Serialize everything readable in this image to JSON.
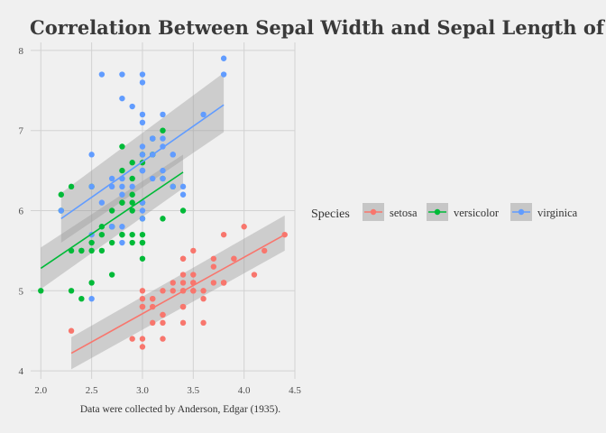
{
  "chart_data": {
    "type": "scatter",
    "title": "Correlation Between Sepal Width and Sepal Length of Iris Species",
    "caption": "Data were collected by Anderson, Edgar (1935).",
    "xlabel": "",
    "ylabel": "",
    "xlim": [
      1.9,
      4.5
    ],
    "ylim": [
      3.9,
      8.1
    ],
    "x_ticks": [
      "2.0",
      "2.5",
      "3.0",
      "3.5",
      "4.0",
      "4.5"
    ],
    "y_ticks": [
      "4",
      "5",
      "6",
      "7",
      "8"
    ],
    "grid": true,
    "legend": {
      "title": "Species",
      "placement": "right"
    },
    "series": [
      {
        "name": "setosa",
        "color": "#F8766D",
        "points": [
          [
            3.5,
            5.1
          ],
          [
            3.0,
            4.9
          ],
          [
            3.2,
            4.7
          ],
          [
            3.1,
            4.6
          ],
          [
            3.6,
            5.0
          ],
          [
            3.9,
            5.4
          ],
          [
            3.4,
            4.6
          ],
          [
            3.4,
            5.0
          ],
          [
            2.9,
            4.4
          ],
          [
            3.1,
            4.9
          ],
          [
            3.7,
            5.4
          ],
          [
            3.4,
            4.8
          ],
          [
            3.0,
            4.8
          ],
          [
            3.0,
            4.3
          ],
          [
            4.0,
            5.8
          ],
          [
            4.4,
            5.7
          ],
          [
            3.9,
            5.4
          ],
          [
            3.5,
            5.1
          ],
          [
            3.8,
            5.7
          ],
          [
            3.8,
            5.1
          ],
          [
            3.4,
            5.4
          ],
          [
            3.7,
            5.1
          ],
          [
            3.6,
            4.6
          ],
          [
            3.3,
            5.1
          ],
          [
            3.4,
            4.8
          ],
          [
            3.0,
            5.0
          ],
          [
            3.4,
            5.0
          ],
          [
            3.5,
            5.2
          ],
          [
            3.4,
            5.2
          ],
          [
            3.2,
            4.7
          ],
          [
            3.1,
            4.8
          ],
          [
            3.4,
            5.4
          ],
          [
            4.1,
            5.2
          ],
          [
            4.2,
            5.5
          ],
          [
            3.1,
            4.9
          ],
          [
            3.2,
            5.0
          ],
          [
            3.5,
            5.5
          ],
          [
            3.6,
            4.9
          ],
          [
            3.0,
            4.4
          ],
          [
            3.4,
            5.1
          ],
          [
            3.5,
            5.0
          ],
          [
            2.3,
            4.5
          ],
          [
            3.2,
            4.4
          ],
          [
            3.5,
            5.0
          ],
          [
            3.8,
            5.1
          ],
          [
            3.0,
            4.8
          ],
          [
            3.8,
            5.1
          ],
          [
            3.2,
            4.6
          ],
          [
            3.7,
            5.3
          ],
          [
            3.3,
            5.0
          ]
        ],
        "fit": {
          "x": [
            2.3,
            4.4
          ],
          "y": [
            4.22,
            5.7
          ],
          "band_lo": [
            4.02,
            5.5
          ],
          "band_hi": [
            4.42,
            5.94
          ]
        }
      },
      {
        "name": "versicolor",
        "color": "#00BA38",
        "points": [
          [
            3.2,
            7.0
          ],
          [
            3.2,
            6.4
          ],
          [
            3.1,
            6.9
          ],
          [
            2.3,
            5.5
          ],
          [
            2.8,
            6.5
          ],
          [
            2.8,
            5.7
          ],
          [
            3.3,
            6.3
          ],
          [
            2.4,
            4.9
          ],
          [
            2.9,
            6.6
          ],
          [
            2.7,
            5.2
          ],
          [
            2.0,
            5.0
          ],
          [
            3.0,
            5.9
          ],
          [
            2.2,
            6.0
          ],
          [
            2.9,
            6.1
          ],
          [
            2.9,
            5.6
          ],
          [
            3.1,
            6.7
          ],
          [
            3.0,
            5.6
          ],
          [
            2.7,
            5.8
          ],
          [
            2.2,
            6.2
          ],
          [
            2.5,
            5.6
          ],
          [
            3.2,
            5.9
          ],
          [
            2.8,
            6.1
          ],
          [
            2.5,
            6.3
          ],
          [
            2.8,
            6.1
          ],
          [
            2.9,
            6.4
          ],
          [
            3.0,
            6.6
          ],
          [
            2.8,
            6.8
          ],
          [
            3.0,
            6.7
          ],
          [
            2.9,
            6.0
          ],
          [
            2.6,
            5.7
          ],
          [
            2.4,
            5.5
          ],
          [
            2.4,
            5.5
          ],
          [
            2.7,
            5.8
          ],
          [
            2.7,
            6.0
          ],
          [
            3.0,
            5.4
          ],
          [
            3.4,
            6.0
          ],
          [
            3.1,
            6.7
          ],
          [
            2.3,
            6.3
          ],
          [
            3.0,
            5.6
          ],
          [
            2.5,
            5.5
          ],
          [
            2.6,
            5.5
          ],
          [
            3.0,
            6.1
          ],
          [
            2.6,
            5.8
          ],
          [
            2.3,
            5.0
          ],
          [
            2.7,
            5.6
          ],
          [
            3.0,
            5.7
          ],
          [
            2.9,
            5.7
          ],
          [
            2.9,
            6.2
          ],
          [
            2.5,
            5.1
          ],
          [
            2.8,
            5.7
          ]
        ],
        "fit": {
          "x": [
            2.0,
            3.4
          ],
          "y": [
            5.28,
            6.48
          ],
          "band_lo": [
            5.02,
            6.28
          ],
          "band_hi": [
            5.54,
            6.7
          ]
        }
      },
      {
        "name": "virginica",
        "color": "#619CFF",
        "points": [
          [
            3.3,
            6.3
          ],
          [
            2.7,
            5.8
          ],
          [
            3.0,
            7.1
          ],
          [
            2.9,
            6.3
          ],
          [
            3.0,
            6.5
          ],
          [
            3.0,
            7.6
          ],
          [
            2.5,
            4.9
          ],
          [
            2.9,
            7.3
          ],
          [
            2.5,
            6.7
          ],
          [
            3.6,
            7.2
          ],
          [
            3.2,
            6.5
          ],
          [
            2.7,
            6.4
          ],
          [
            3.0,
            6.8
          ],
          [
            2.5,
            5.7
          ],
          [
            2.8,
            5.8
          ],
          [
            3.2,
            6.4
          ],
          [
            3.0,
            6.5
          ],
          [
            3.8,
            7.7
          ],
          [
            2.6,
            7.7
          ],
          [
            2.2,
            6.0
          ],
          [
            3.2,
            6.9
          ],
          [
            2.8,
            5.6
          ],
          [
            2.8,
            7.7
          ],
          [
            2.7,
            6.3
          ],
          [
            3.3,
            6.7
          ],
          [
            3.2,
            7.2
          ],
          [
            2.8,
            6.2
          ],
          [
            3.0,
            6.1
          ],
          [
            2.8,
            6.4
          ],
          [
            3.0,
            7.2
          ],
          [
            2.8,
            7.4
          ],
          [
            3.8,
            7.9
          ],
          [
            2.8,
            6.4
          ],
          [
            2.8,
            6.3
          ],
          [
            2.6,
            6.1
          ],
          [
            3.0,
            7.7
          ],
          [
            3.4,
            6.3
          ],
          [
            3.1,
            6.4
          ],
          [
            3.0,
            6.0
          ],
          [
            3.1,
            6.9
          ],
          [
            3.1,
            6.7
          ],
          [
            3.1,
            6.9
          ],
          [
            2.7,
            5.8
          ],
          [
            3.2,
            6.8
          ],
          [
            3.3,
            6.7
          ],
          [
            3.0,
            6.7
          ],
          [
            2.5,
            6.3
          ],
          [
            3.0,
            6.5
          ],
          [
            3.4,
            6.2
          ],
          [
            3.0,
            5.9
          ]
        ],
        "fit": {
          "x": [
            2.2,
            3.8
          ],
          "y": [
            5.9,
            7.32
          ],
          "band_lo": [
            5.6,
            6.98
          ],
          "band_hi": [
            6.22,
            7.72
          ]
        }
      }
    ]
  }
}
